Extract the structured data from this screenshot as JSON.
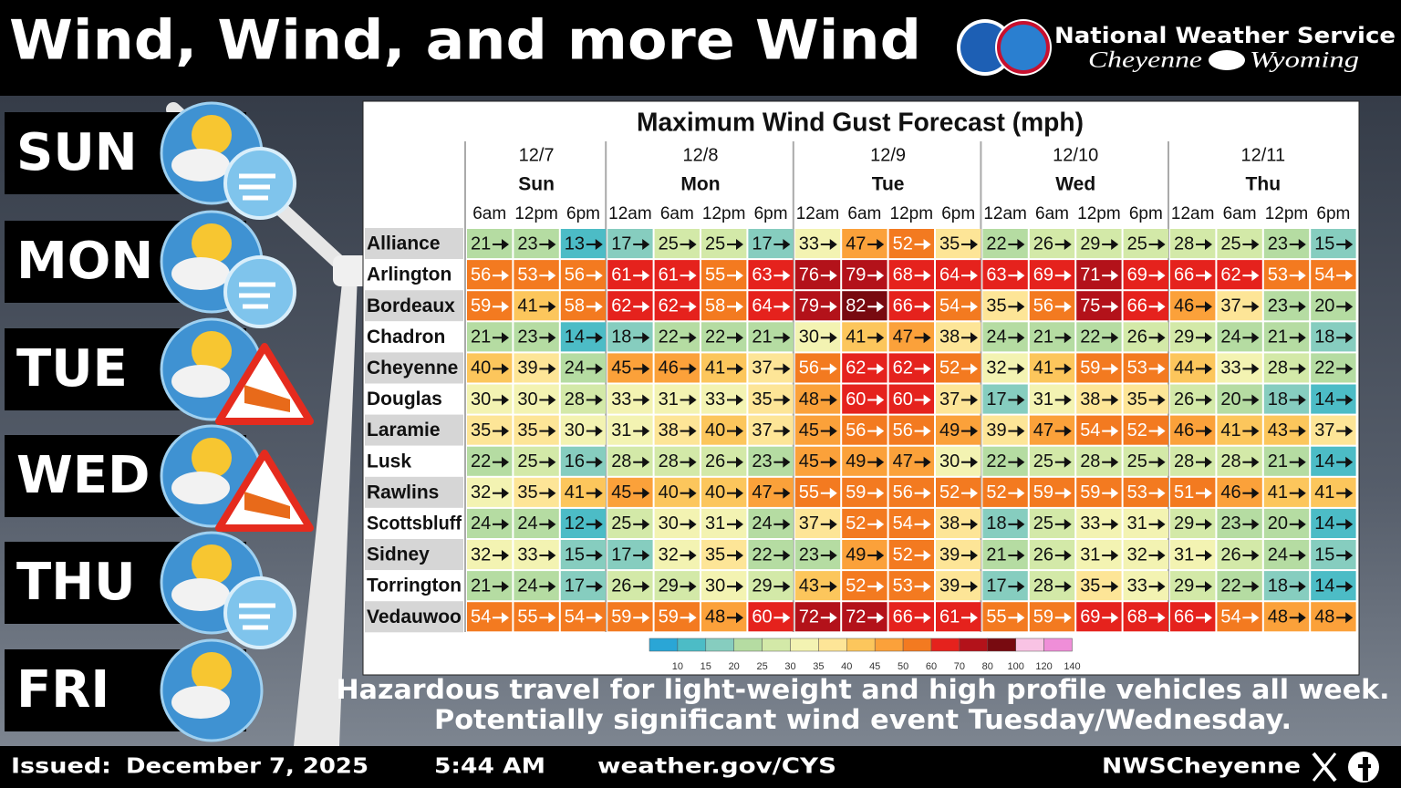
{
  "header": {
    "title": "Wind, Wind, and more Wind",
    "agency": "National Weather Service",
    "office_city": "Cheyenne",
    "office_state": "Wyoming"
  },
  "days": [
    "SUN",
    "MON",
    "TUE",
    "WED",
    "THU",
    "FRI"
  ],
  "table": {
    "title": "Maximum Wind Gust Forecast (mph)",
    "dates": [
      {
        "date": "12/7",
        "day": "Sun",
        "times": [
          "6am",
          "12pm",
          "6pm"
        ]
      },
      {
        "date": "12/8",
        "day": "Mon",
        "times": [
          "12am",
          "6am",
          "12pm",
          "6pm"
        ]
      },
      {
        "date": "12/9",
        "day": "Tue",
        "times": [
          "12am",
          "6am",
          "12pm",
          "6pm"
        ]
      },
      {
        "date": "12/10",
        "day": "Wed",
        "times": [
          "12am",
          "6am",
          "12pm",
          "6pm"
        ]
      },
      {
        "date": "12/11",
        "day": "Thu",
        "times": [
          "12am",
          "6am",
          "12pm",
          "6pm"
        ]
      }
    ],
    "rows": [
      {
        "name": "Alliance",
        "values": [
          21,
          23,
          13,
          17,
          25,
          25,
          17,
          33,
          47,
          52,
          35,
          22,
          26,
          29,
          25,
          28,
          25,
          23,
          15
        ]
      },
      {
        "name": "Arlington",
        "values": [
          56,
          53,
          56,
          61,
          61,
          55,
          63,
          76,
          79,
          68,
          64,
          63,
          69,
          71,
          69,
          66,
          62,
          53,
          54
        ]
      },
      {
        "name": "Bordeaux",
        "values": [
          59,
          41,
          58,
          62,
          62,
          58,
          64,
          79,
          82,
          66,
          54,
          35,
          56,
          75,
          66,
          46,
          37,
          23,
          20
        ]
      },
      {
        "name": "Chadron",
        "values": [
          21,
          23,
          14,
          18,
          22,
          22,
          21,
          30,
          41,
          47,
          38,
          24,
          21,
          22,
          26,
          29,
          24,
          21,
          18
        ]
      },
      {
        "name": "Cheyenne",
        "values": [
          40,
          39,
          24,
          45,
          46,
          41,
          37,
          56,
          62,
          62,
          52,
          32,
          41,
          59,
          53,
          44,
          33,
          28,
          22
        ]
      },
      {
        "name": "Douglas",
        "values": [
          30,
          30,
          28,
          33,
          31,
          33,
          35,
          48,
          60,
          60,
          37,
          17,
          31,
          38,
          35,
          26,
          20,
          18,
          14
        ]
      },
      {
        "name": "Laramie",
        "values": [
          35,
          35,
          30,
          31,
          38,
          40,
          37,
          45,
          56,
          56,
          49,
          39,
          47,
          54,
          52,
          46,
          41,
          43,
          37
        ]
      },
      {
        "name": "Lusk",
        "values": [
          22,
          25,
          16,
          28,
          28,
          26,
          23,
          45,
          49,
          47,
          30,
          22,
          25,
          28,
          25,
          28,
          28,
          21,
          14
        ]
      },
      {
        "name": "Rawlins",
        "values": [
          32,
          35,
          41,
          45,
          40,
          40,
          47,
          55,
          59,
          56,
          52,
          52,
          59,
          59,
          53,
          51,
          46,
          41,
          41
        ]
      },
      {
        "name": "Scottsbluff",
        "values": [
          24,
          24,
          12,
          25,
          30,
          31,
          24,
          37,
          52,
          54,
          38,
          18,
          25,
          33,
          31,
          29,
          23,
          20,
          14
        ]
      },
      {
        "name": "Sidney",
        "values": [
          32,
          33,
          15,
          17,
          32,
          35,
          22,
          23,
          49,
          52,
          39,
          21,
          26,
          31,
          32,
          31,
          26,
          24,
          15
        ]
      },
      {
        "name": "Torrington",
        "values": [
          21,
          24,
          17,
          26,
          29,
          30,
          29,
          43,
          52,
          53,
          39,
          17,
          28,
          35,
          33,
          29,
          22,
          18,
          14
        ]
      },
      {
        "name": "Vedauwoo",
        "values": [
          54,
          55,
          54,
          59,
          59,
          48,
          60,
          72,
          72,
          66,
          61,
          55,
          59,
          69,
          68,
          66,
          54,
          48,
          48
        ]
      }
    ]
  },
  "colorbar": {
    "ticks": [
      10,
      15,
      20,
      25,
      30,
      35,
      40,
      45,
      50,
      60,
      70,
      80,
      100,
      120,
      140
    ],
    "colors": [
      "#2aa6d6",
      "#4cbcc6",
      "#86cdbf",
      "#b5dca2",
      "#d3e9a8",
      "#f3f3b2",
      "#fde597",
      "#fcc65c",
      "#fba13a",
      "#f37a20",
      "#e5221d",
      "#b3121a",
      "#780a10",
      "#f9c3e4",
      "#ef8ed8"
    ]
  },
  "messages": [
    "Hazardous travel for light-weight and high profile vehicles all week.",
    "Potentially significant wind event Tuesday/Wednesday."
  ],
  "footer": {
    "issued_label": "Issued:",
    "date": "December 7, 2025",
    "time": "5:44 AM",
    "website": "weather.gov/CYS",
    "handle": "NWSCheyenne"
  }
}
